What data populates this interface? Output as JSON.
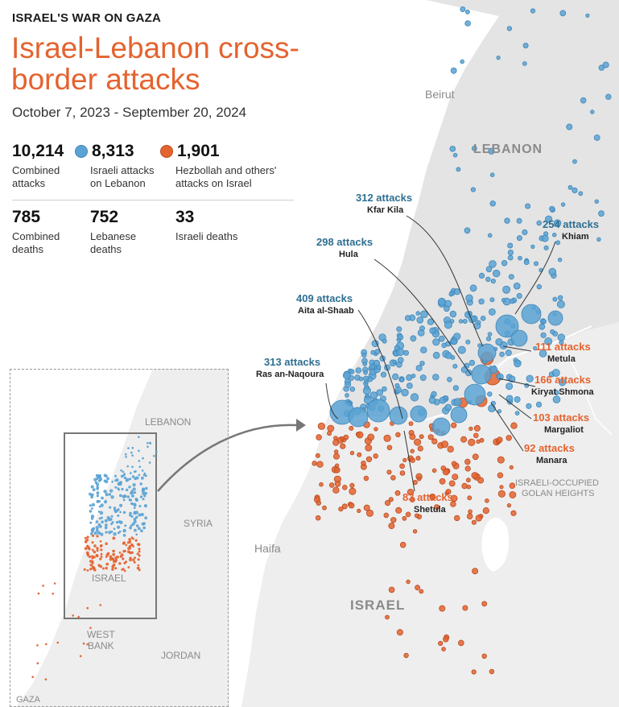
{
  "header": {
    "kicker": "ISRAEL'S WAR ON GAZA",
    "title": "Israel-Lebanon cross-border attacks",
    "subtitle": "October 7, 2023 - September 20, 2024"
  },
  "stats_attacks": [
    {
      "value": "10,214",
      "label": "Combined attacks",
      "dot": ""
    },
    {
      "value": "8,313",
      "label": "Israeli attacks on Lebanon",
      "dot": "#5ba3d4"
    },
    {
      "value": "1,901",
      "label": "Hezbollah and others' attacks on Israel",
      "dot": "#e4632f"
    }
  ],
  "stats_deaths": [
    {
      "value": "785",
      "label": "Combined deaths"
    },
    {
      "value": "752",
      "label": "Lebanese deaths"
    },
    {
      "value": "33",
      "label": "Israeli deaths"
    }
  ],
  "colors": {
    "israeli_attacks": "#5ba3d4",
    "hezbollah_attacks": "#e4632f",
    "blue_label": "#2f6f91",
    "orange_label": "#e4632f",
    "land": "#ededed",
    "lebanon_land": "#e6e6e6",
    "sea": "#ffffff"
  },
  "map_labels": {
    "beirut": "Beirut",
    "lebanon": "LEBANON",
    "israel": "ISRAEL",
    "haifa": "Haifa",
    "golan_line1": "ISRAELI-OCCUPIED",
    "golan_line2": "GOLAN HEIGHTS"
  },
  "inset_labels": {
    "lebanon": "LEBANON",
    "syria": "SYRIA",
    "israel": "ISRAEL",
    "west_bank_line1": "WEST",
    "west_bank_line2": "BANK",
    "jordan": "JORDAN",
    "gaza": "GAZA"
  },
  "callouts": {
    "blue": [
      {
        "count": "312 attacks",
        "place": "Kfar Kila"
      },
      {
        "count": "254 attacks",
        "place": "Khiam"
      },
      {
        "count": "298 attacks",
        "place": "Hula"
      },
      {
        "count": "409 attacks",
        "place": "Aita al-Shaab"
      },
      {
        "count": "313 attacks",
        "place": "Ras an-Naqoura"
      }
    ],
    "orange": [
      {
        "count": "111 attacks",
        "place": "Metula"
      },
      {
        "count": "166 attacks",
        "place": "Kiryat Shmona"
      },
      {
        "count": "103 attacks",
        "place": "Margaliot"
      },
      {
        "count": "92 attacks",
        "place": "Manara"
      },
      {
        "count": "83 attacks",
        "place": "Shetula"
      }
    ]
  }
}
